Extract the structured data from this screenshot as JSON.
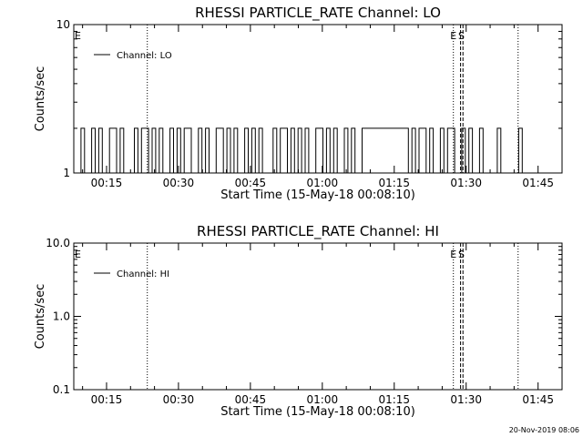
{
  "footer": "20-Nov-2019 08:06",
  "chart_data": [
    {
      "type": "line",
      "title": "RHESSI PARTICLE_RATE Channel: LO",
      "xlabel": "Start Time (15-May-18 00:08:10)",
      "ylabel": "Counts/sec",
      "yscale": "log",
      "ylim": [
        1,
        10
      ],
      "ytick_labels": [
        "1",
        "10"
      ],
      "xlim": [
        "00:08:10",
        "01:50:00"
      ],
      "xtick_labels": [
        "00:15",
        "00:30",
        "00:45",
        "01:00",
        "01:15",
        "01:30",
        "01:45"
      ],
      "legend": {
        "label": "Channel: LO",
        "placement": "top-left"
      },
      "markers": [
        {
          "label": "E",
          "time": "00:08:10"
        },
        {
          "label": "E",
          "time": "01:27:20"
        },
        {
          "label": "S",
          "time": "01:29:00"
        }
      ],
      "vlines_dotted": [
        "00:23:30",
        "01:27:20",
        "01:40:50"
      ],
      "vlines_dashed": [
        "01:28:50",
        "01:29:20"
      ],
      "series": [
        {
          "name": "Channel: LO",
          "values": [
            1,
            2,
            1,
            1,
            2,
            1,
            2,
            1,
            1,
            2,
            2,
            1,
            2,
            1,
            1,
            1,
            2,
            1,
            2,
            2,
            1,
            2,
            1,
            2,
            1,
            1,
            2,
            1,
            2,
            1,
            2,
            2,
            1,
            1,
            2,
            1,
            2,
            1,
            1,
            2,
            2,
            1,
            2,
            1,
            2,
            1,
            1,
            2,
            1,
            2,
            1,
            2,
            1,
            1,
            1,
            2,
            1,
            2,
            2,
            1,
            2,
            1,
            2,
            1,
            2,
            1,
            1,
            2,
            2,
            1,
            2,
            1,
            2,
            1,
            1,
            2,
            1,
            2,
            1,
            1,
            2,
            2,
            2,
            2,
            2,
            2,
            2,
            2,
            2,
            2,
            2,
            2,
            2,
            1,
            2,
            1,
            2,
            2,
            1,
            2,
            1,
            1,
            2,
            1,
            2,
            2,
            1,
            1,
            2,
            1,
            2,
            1,
            1,
            2,
            1,
            1,
            1,
            1,
            2,
            1,
            1,
            1,
            1,
            1,
            2,
            1,
            1,
            1
          ]
        }
      ]
    },
    {
      "type": "line",
      "title": "RHESSI PARTICLE_RATE Channel: HI",
      "xlabel": "Start Time (15-May-18 00:08:10)",
      "ylabel": "Counts/sec",
      "yscale": "log",
      "ylim": [
        0.1,
        10
      ],
      "ytick_labels": [
        "0.1",
        "1.0",
        "10.0"
      ],
      "xlim": [
        "00:08:10",
        "01:50:00"
      ],
      "xtick_labels": [
        "00:15",
        "00:30",
        "00:45",
        "01:00",
        "01:15",
        "01:30",
        "01:45"
      ],
      "legend": {
        "label": "Channel: HI",
        "placement": "top-left"
      },
      "markers": [
        {
          "label": "E",
          "time": "00:08:10"
        },
        {
          "label": "E",
          "time": "01:27:20"
        },
        {
          "label": "S",
          "time": "01:29:00"
        }
      ],
      "vlines_dotted": [
        "00:23:30",
        "01:27:20",
        "01:40:50"
      ],
      "vlines_dashed": [
        "01:28:50",
        "01:29:20"
      ],
      "series": [
        {
          "name": "Channel: HI",
          "values": []
        }
      ]
    }
  ]
}
